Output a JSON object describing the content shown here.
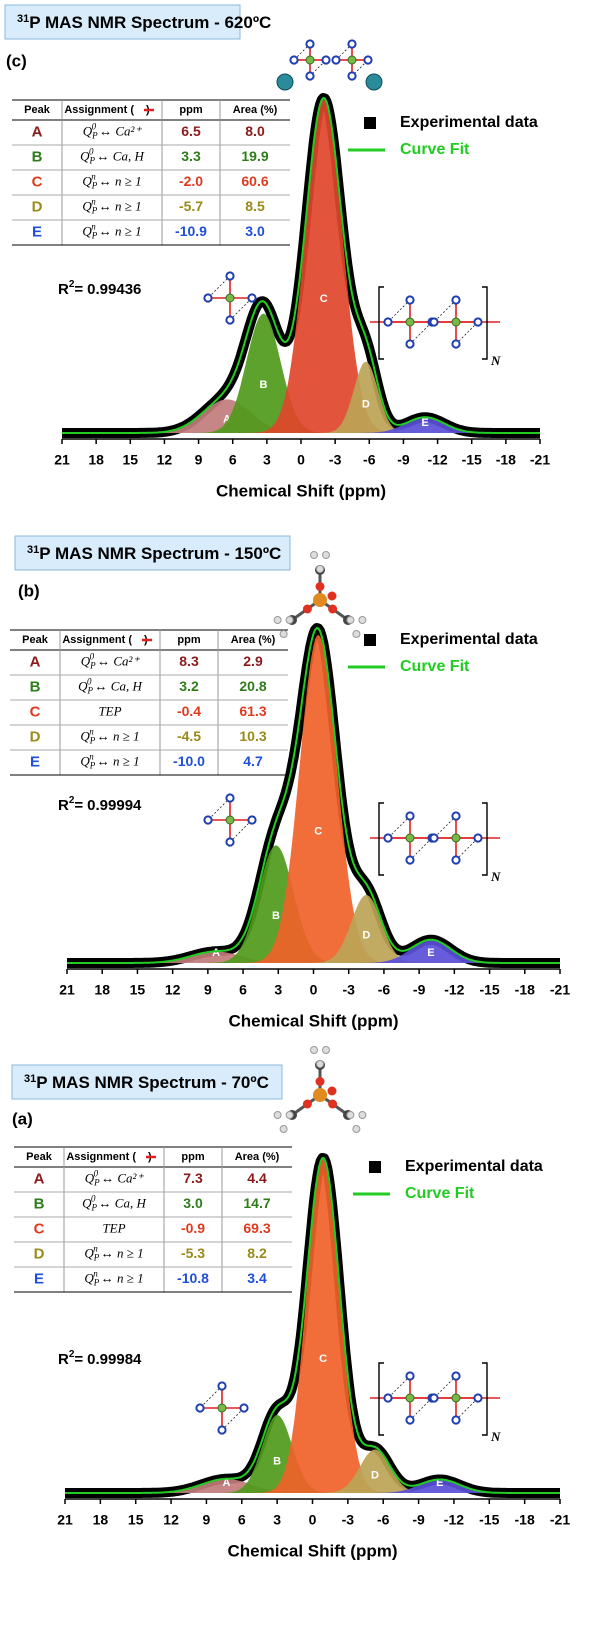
{
  "chart_data": [
    {
      "type": "area",
      "title_sup": "31",
      "title": "P MAS NMR Spectrum - 620ºC",
      "panel_label": "(c)",
      "table_header": [
        "Peak",
        [
          "Assignment (",
          ")"
        ],
        "ppm",
        "Area (%)"
      ],
      "categories": [
        "A",
        "B",
        "C",
        "D",
        "E"
      ],
      "assignments": [
        [
          "Q",
          "P",
          "0",
          "↔ Ca²⁺"
        ],
        [
          "Q",
          "P",
          "0",
          "↔ Ca, H"
        ],
        [
          "Q",
          "P",
          "n",
          "↔ n ≥ 1"
        ],
        [
          "Q",
          "P",
          "n",
          "↔ n ≥ 1"
        ],
        [
          "Q",
          "P",
          "n",
          "↔ n ≥ 1"
        ]
      ],
      "x": [
        6.5,
        3.3,
        -2,
        -5.7,
        -10.9
      ],
      "x_labels": [
        "6.5",
        "3.3",
        "-2.0",
        "-5.7",
        "-10.9"
      ],
      "values": [
        8,
        19.9,
        60.6,
        8.5,
        3
      ],
      "value_labels": [
        "8.0",
        "19.9",
        "60.6",
        "8.5",
        "3.0"
      ],
      "widths": [
        5,
        3.5,
        3.8,
        2.5,
        4
      ],
      "colors": [
        "#c27c7c",
        "#4f9a1a",
        "#e0452a",
        "#bca456",
        "#5a4fd8"
      ],
      "text_colors": [
        "#8b1a1a",
        "#2e7d1a",
        "#e03a1e",
        "#9a8a1a",
        "#1f4fd8"
      ],
      "series": [
        {
          "name": "Experimental data",
          "color": "#000000"
        },
        {
          "name": "Curve Fit",
          "color": "#22cc22"
        }
      ],
      "fit_label": "R",
      "fit_sup": "2",
      "fit_eq": "=",
      "r2": 0.99436,
      "chain_subscript": "N",
      "xlabel": "Chemical Shift (ppm)",
      "xlim": [
        21,
        -21
      ],
      "xticks": [
        21,
        18,
        15,
        12,
        9,
        6,
        3,
        0,
        -3,
        -6,
        -9,
        -12,
        -15,
        -18,
        -21
      ]
    },
    {
      "type": "area",
      "title_sup": "31",
      "title": "P MAS NMR Spectrum - 150ºC",
      "panel_label": "(b)",
      "table_header": [
        "Peak",
        [
          "Assignment (",
          ")"
        ],
        "ppm",
        "Area (%)"
      ],
      "categories": [
        "A",
        "B",
        "C",
        "D",
        "E"
      ],
      "assignments": [
        [
          "Q",
          "P",
          "0",
          "↔ Ca²⁺"
        ],
        [
          "Q",
          "P",
          "0",
          "↔ Ca, H"
        ],
        [
          "TEP"
        ],
        [
          "Q",
          "P",
          "n",
          "↔ n ≥ 1"
        ],
        [
          "Q",
          "P",
          "n",
          "↔ n ≥ 1"
        ]
      ],
      "x": [
        8.3,
        3.2,
        -0.4,
        -4.5,
        -10
      ],
      "x_labels": [
        "8.3",
        "3.2",
        "-0.4",
        "-4.5",
        "-10.0"
      ],
      "values": [
        2.9,
        20.8,
        61.3,
        10.3,
        4.7
      ],
      "value_labels": [
        "2.9",
        "20.8",
        "61.3",
        "10.3",
        "4.7"
      ],
      "widths": [
        5,
        3.5,
        3.7,
        3,
        4
      ],
      "colors": [
        "#c27c7c",
        "#4f9a1a",
        "#f0622a",
        "#bca456",
        "#5a4fd8"
      ],
      "text_colors": [
        "#8b1a1a",
        "#2e7d1a",
        "#e03a1e",
        "#9a8a1a",
        "#1f4fd8"
      ],
      "series": [
        {
          "name": "Experimental data",
          "color": "#000000"
        },
        {
          "name": "Curve Fit",
          "color": "#22cc22"
        }
      ],
      "fit_label": "R",
      "fit_sup": "2",
      "fit_eq": "=",
      "r2": 0.99994,
      "chain_subscript": "N",
      "xlabel": "Chemical Shift (ppm)",
      "xlim": [
        21,
        -21
      ],
      "xticks": [
        21,
        18,
        15,
        12,
        9,
        6,
        3,
        0,
        -3,
        -6,
        -9,
        -12,
        -15,
        -18,
        -21
      ]
    },
    {
      "type": "area",
      "title_sup": "31",
      "title": "P MAS NMR Spectrum - 70ºC",
      "panel_label": "(a)",
      "table_header": [
        "Peak",
        [
          "Assignment (",
          ")"
        ],
        "ppm",
        "Area (%)"
      ],
      "categories": [
        "A",
        "B",
        "C",
        "D",
        "E"
      ],
      "assignments": [
        [
          "Q",
          "P",
          "0",
          "↔ Ca²⁺"
        ],
        [
          "Q",
          "P",
          "0",
          "↔ Ca, H"
        ],
        [
          "TEP"
        ],
        [
          "Q",
          "P",
          "n",
          "↔ n ≥ 1"
        ],
        [
          "Q",
          "P",
          "n",
          "↔ n ≥ 1"
        ]
      ],
      "x": [
        7.3,
        3,
        -0.9,
        -5.3,
        -10.8
      ],
      "x_labels": [
        "7.3",
        "3.0",
        "-0.9",
        "-5.3",
        "-10.8"
      ],
      "values": [
        4.4,
        14.7,
        69.3,
        8.2,
        3.4
      ],
      "value_labels": [
        "4.4",
        "14.7",
        "69.3",
        "8.2",
        "3.4"
      ],
      "widths": [
        5,
        3,
        3.3,
        3,
        4
      ],
      "colors": [
        "#c27c7c",
        "#4f9a1a",
        "#f0622a",
        "#bca456",
        "#5a4fd8"
      ],
      "text_colors": [
        "#8b1a1a",
        "#2e7d1a",
        "#e03a1e",
        "#9a8a1a",
        "#1f4fd8"
      ],
      "series": [
        {
          "name": "Experimental data",
          "color": "#000000"
        },
        {
          "name": "Curve Fit",
          "color": "#22cc22"
        }
      ],
      "fit_label": "R",
      "fit_sup": "2",
      "fit_eq": "=",
      "r2": 0.99984,
      "chain_subscript": "N",
      "xlabel": "Chemical Shift (ppm)",
      "xlim": [
        21,
        -21
      ],
      "xticks": [
        21,
        18,
        15,
        12,
        9,
        6,
        3,
        0,
        -3,
        -6,
        -9,
        -12,
        -15,
        -18,
        -21
      ]
    }
  ]
}
